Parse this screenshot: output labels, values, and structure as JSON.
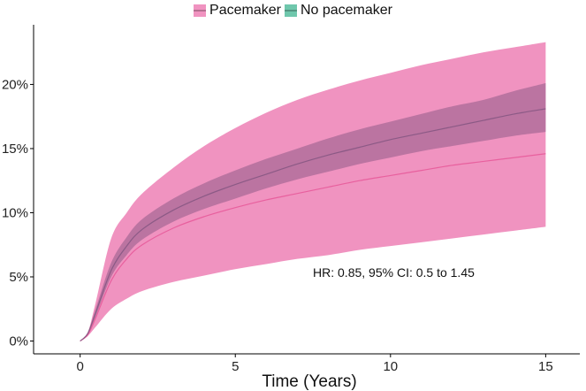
{
  "chart_data": {
    "type": "area",
    "title": "",
    "xlabel": "Time (Years)",
    "ylabel": "",
    "xlim": [
      -1.5,
      16.1
    ],
    "ylim": [
      -0.01,
      0.2465
    ],
    "x_ticks": [
      0,
      5,
      10,
      15
    ],
    "x_tick_labels": [
      "0",
      "5",
      "10",
      "15"
    ],
    "y_ticks": [
      0,
      0.05,
      0.1,
      0.15,
      0.2
    ],
    "y_tick_labels": [
      "0%",
      "5%",
      "10%",
      "15%",
      "20%"
    ],
    "grid": false,
    "legend_position": "top-center",
    "x": [
      0,
      0.25,
      0.5,
      1,
      1.5,
      2,
      3,
      4,
      5,
      6,
      7,
      8,
      9,
      10,
      11,
      12,
      13,
      14,
      15
    ],
    "series": [
      {
        "name": "Pacemaker",
        "color": "#e8609e",
        "band_color": "#f093c0",
        "estimate": [
          0,
          0.005,
          0.018,
          0.047,
          0.064,
          0.075,
          0.088,
          0.097,
          0.104,
          0.11,
          0.115,
          0.12,
          0.125,
          0.129,
          0.133,
          0.137,
          0.14,
          0.143,
          0.146
        ],
        "lower": [
          0,
          0.004,
          0.011,
          0.025,
          0.033,
          0.039,
          0.046,
          0.051,
          0.056,
          0.06,
          0.064,
          0.067,
          0.071,
          0.074,
          0.077,
          0.08,
          0.083,
          0.086,
          0.089
        ],
        "upper": [
          0,
          0.007,
          0.03,
          0.08,
          0.1,
          0.115,
          0.135,
          0.152,
          0.166,
          0.178,
          0.188,
          0.196,
          0.203,
          0.209,
          0.215,
          0.22,
          0.225,
          0.229,
          0.233
        ]
      },
      {
        "name": "No pacemaker",
        "color": "#8c5a86",
        "band_color": "#b16e9b",
        "legend_color": "#6fc7ac",
        "estimate": [
          0,
          0.006,
          0.022,
          0.055,
          0.074,
          0.087,
          0.102,
          0.113,
          0.122,
          0.13,
          0.138,
          0.145,
          0.151,
          0.157,
          0.162,
          0.167,
          0.172,
          0.177,
          0.181
        ],
        "lower": [
          0,
          0.005,
          0.019,
          0.05,
          0.067,
          0.079,
          0.093,
          0.103,
          0.111,
          0.119,
          0.126,
          0.132,
          0.138,
          0.143,
          0.148,
          0.152,
          0.156,
          0.16,
          0.163
        ],
        "upper": [
          0,
          0.007,
          0.025,
          0.061,
          0.081,
          0.095,
          0.111,
          0.123,
          0.133,
          0.142,
          0.15,
          0.158,
          0.165,
          0.171,
          0.177,
          0.183,
          0.188,
          0.195,
          0.201
        ]
      }
    ],
    "annotations": [
      {
        "text": "HR: 0.85, 95% CI: 0.5 to 1.45",
        "x": 7.5,
        "y": 0.05
      }
    ]
  }
}
